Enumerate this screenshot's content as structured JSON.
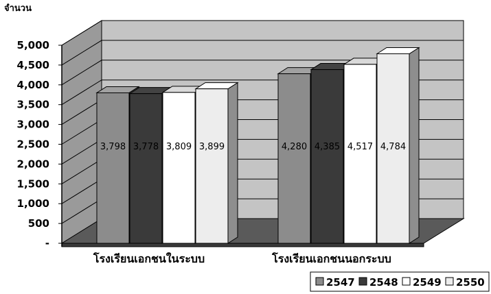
{
  "chart_data": {
    "type": "bar",
    "ylabel": "จำนวน",
    "ylim": [
      0,
      5000
    ],
    "y_ticks": [
      {
        "value": 5000,
        "label": "5,000"
      },
      {
        "value": 4500,
        "label": "4,500"
      },
      {
        "value": 4000,
        "label": "4,000"
      },
      {
        "value": 3500,
        "label": "3,500"
      },
      {
        "value": 3000,
        "label": "3,000"
      },
      {
        "value": 2500,
        "label": "2,500"
      },
      {
        "value": 2000,
        "label": "2,000"
      },
      {
        "value": 1500,
        "label": "1,500"
      },
      {
        "value": 1000,
        "label": "1,000"
      },
      {
        "value": 500,
        "label": "500"
      },
      {
        "value": 0,
        "label": "-"
      }
    ],
    "categories": [
      "โรงเรียนเอกชนในระบบ",
      "โรงเรียนเอกชนนอกระบบ"
    ],
    "series": [
      {
        "name": "2547",
        "values": [
          3798,
          4280
        ],
        "labels": [
          "3,798",
          "4,280"
        ],
        "color": "#8c8c8c"
      },
      {
        "name": "2548",
        "values": [
          3778,
          4385
        ],
        "labels": [
          "3,778",
          "4,385"
        ],
        "color": "#3a3a3a"
      },
      {
        "name": "2549",
        "values": [
          3809,
          4517
        ],
        "labels": [
          "3,809",
          "4,517"
        ],
        "color": "#ffffff"
      },
      {
        "name": "2550",
        "values": [
          3899,
          4784
        ],
        "labels": [
          "3,899",
          "4,784"
        ],
        "color": "#ededed"
      }
    ],
    "legend_position": "bottom-right",
    "grid": true
  }
}
